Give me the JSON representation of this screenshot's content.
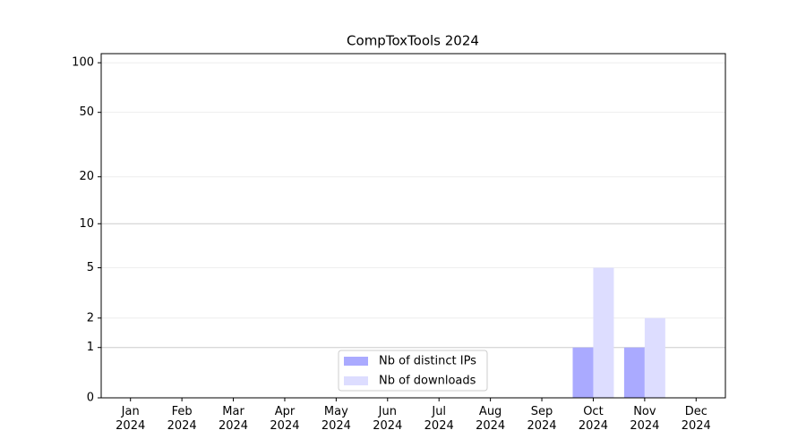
{
  "chart_data": {
    "type": "bar",
    "title": "CompToxTools 2024",
    "categories": [
      "Jan\n2024",
      "Feb\n2024",
      "Mar\n2024",
      "Apr\n2024",
      "May\n2024",
      "Jun\n2024",
      "Jul\n2024",
      "Aug\n2024",
      "Sep\n2024",
      "Oct\n2024",
      "Nov\n2024",
      "Dec\n2024"
    ],
    "series": [
      {
        "name": "Nb of distinct IPs",
        "color": "#aaaaff",
        "values": [
          0,
          0,
          0,
          0,
          0,
          0,
          0,
          0,
          0,
          1,
          1,
          0
        ]
      },
      {
        "name": "Nb of downloads",
        "color": "#ddddff",
        "values": [
          0,
          0,
          0,
          0,
          0,
          0,
          0,
          0,
          0,
          5,
          2,
          0
        ]
      }
    ],
    "yscale": "log1p",
    "ylim": [
      0,
      113.5
    ],
    "yticks": [
      0,
      1,
      2,
      5,
      10,
      20,
      50,
      100
    ],
    "grid": true,
    "legend": "lower center"
  }
}
